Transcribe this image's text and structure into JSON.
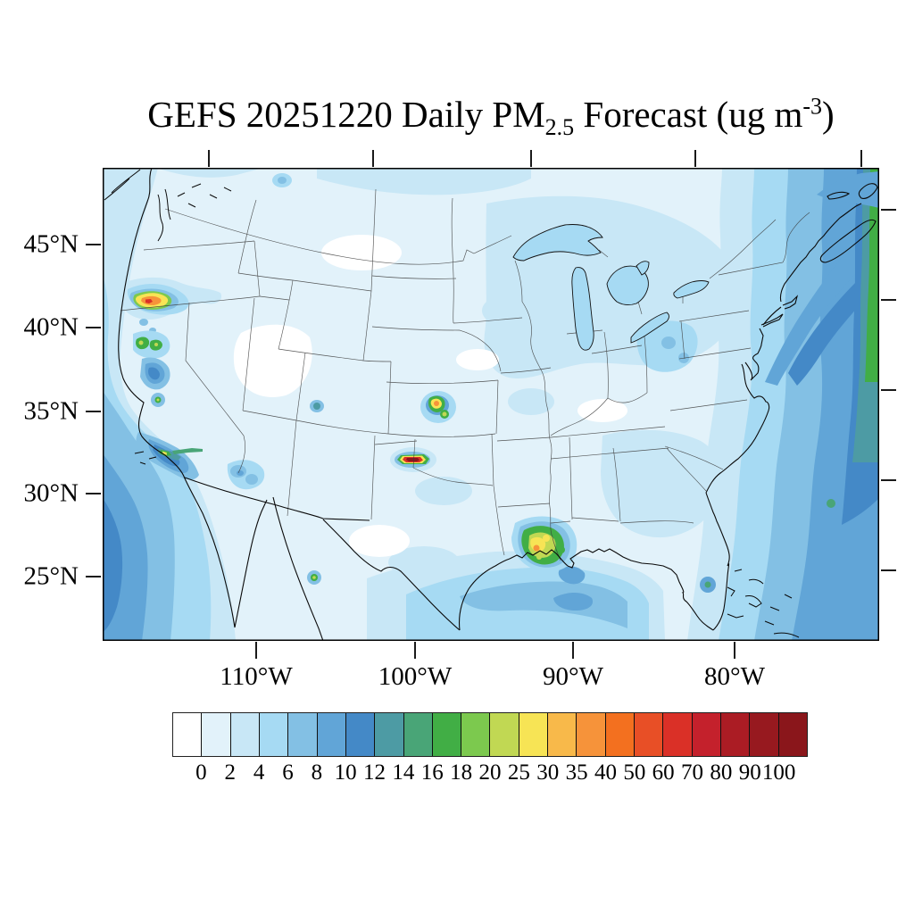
{
  "title": {
    "prefix": "GEFS 20251220 Daily PM",
    "subscript": "2.5",
    "middle": " Forecast (ug m",
    "superscript": "-3",
    "suffix": ")"
  },
  "axes": {
    "lat_labels": [
      "45°N",
      "40°N",
      "35°N",
      "30°N",
      "25°N"
    ],
    "lon_labels": [
      "110°W",
      "100°W",
      "90°W",
      "80°W"
    ]
  },
  "colorbar": {
    "labels": [
      "0",
      "2",
      "4",
      "6",
      "8",
      "10",
      "12",
      "14",
      "16",
      "18",
      "20",
      "25",
      "30",
      "35",
      "40",
      "50",
      "60",
      "70",
      "80",
      "90",
      "100"
    ],
    "colors": [
      "#ffffff",
      "#e2f2fa",
      "#c8e7f6",
      "#a6daf3",
      "#83c0e4",
      "#61a5d7",
      "#4489c7",
      "#4d9ba4",
      "#49a577",
      "#41ae45",
      "#7cc94e",
      "#c1d853",
      "#f7e455",
      "#f8b94a",
      "#f6933a",
      "#f3701f",
      "#e84f26",
      "#da3027",
      "#c4212c",
      "#ab1c24",
      "#97191f",
      "#8a161b"
    ]
  },
  "map": {
    "frame_color": "#000000",
    "land_base_color": "#e2f2fa"
  }
}
